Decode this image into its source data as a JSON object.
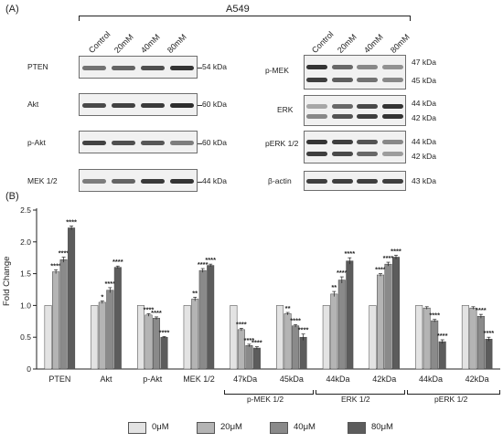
{
  "panel_a": {
    "label": "(A)",
    "cell_line": "A549",
    "columns": [
      "Control",
      "20mM",
      "40mM",
      "80mM"
    ],
    "left_blots": [
      {
        "protein": "PTEN",
        "mw": "54 kDa",
        "intensities": [
          0.55,
          0.62,
          0.72,
          0.85
        ]
      },
      {
        "protein": "Akt",
        "mw": "60 kDa",
        "intensities": [
          0.75,
          0.78,
          0.82,
          0.88
        ]
      },
      {
        "protein": "p-Akt",
        "mw": "60 kDa",
        "intensities": [
          0.78,
          0.72,
          0.68,
          0.5
        ]
      },
      {
        "protein": "MEK 1/2",
        "mw": "44 kDa",
        "intensities": [
          0.5,
          0.62,
          0.82,
          0.85
        ]
      }
    ],
    "right_blots": [
      {
        "protein": "p-MEK",
        "mw_top": "47 kDa",
        "mw_bottom": "45 kDa",
        "intensities_top": [
          0.85,
          0.6,
          0.45,
          0.4
        ],
        "intensities_bottom": [
          0.8,
          0.65,
          0.55,
          0.45
        ]
      },
      {
        "protein": "ERK",
        "mw_top": "44 kDa",
        "mw_bottom": "42 kDa",
        "intensities_top": [
          0.3,
          0.6,
          0.75,
          0.85
        ],
        "intensities_bottom": [
          0.45,
          0.7,
          0.8,
          0.85
        ]
      },
      {
        "protein": "pERK 1/2",
        "mw_top": "44 kDa",
        "mw_bottom": "42 kDa",
        "intensities_top": [
          0.85,
          0.8,
          0.7,
          0.45
        ],
        "intensities_bottom": [
          0.8,
          0.75,
          0.6,
          0.35
        ]
      },
      {
        "protein": "β-actin",
        "mw": "43 kDa",
        "intensities": [
          0.8,
          0.8,
          0.8,
          0.8
        ]
      }
    ]
  },
  "panel_b": {
    "label": "(B)",
    "ylabel": "Fold Change",
    "legend": [
      "0μM",
      "20μM",
      "40μM",
      "80μM"
    ],
    "group_brackets": [
      "p-MEK 1/2",
      "ERK 1/2",
      "pERK 1/2"
    ]
  },
  "chart_data": {
    "type": "bar",
    "ylabel": "Fold Change",
    "ylim": [
      0,
      2.5
    ],
    "yticks": [
      0,
      0.5,
      1.0,
      1.5,
      2.0,
      2.5
    ],
    "categories": [
      "PTEN",
      "Akt",
      "p-Akt",
      "MEK 1/2",
      "47kDa",
      "45kDa",
      "44kDa",
      "42kDa",
      "44kDa",
      "42kDa"
    ],
    "series": [
      {
        "name": "0μM",
        "color": "#e3e3e3",
        "values": [
          1,
          1,
          1,
          1,
          1,
          1,
          1,
          1,
          1,
          1
        ],
        "errors": [
          0,
          0,
          0,
          0,
          0,
          0,
          0,
          0,
          0,
          0
        ],
        "stars": [
          "",
          "",
          "",
          "",
          "",
          "",
          "",
          "",
          "",
          ""
        ]
      },
      {
        "name": "20μM",
        "color": "#b4b4b4",
        "values": [
          1.53,
          1.05,
          0.85,
          1.1,
          0.62,
          0.87,
          1.18,
          1.48,
          0.96,
          0.96
        ],
        "errors": [
          0.03,
          0.02,
          0.02,
          0.03,
          0.02,
          0.02,
          0.04,
          0.02,
          0.02,
          0.02
        ],
        "stars": [
          "****",
          "*",
          "****",
          "**",
          "****",
          "**",
          "**",
          "****",
          "",
          ""
        ]
      },
      {
        "name": "40μM",
        "color": "#8a8a8a",
        "values": [
          1.72,
          1.24,
          0.8,
          1.55,
          0.37,
          0.68,
          1.4,
          1.65,
          0.76,
          0.83
        ],
        "errors": [
          0.04,
          0.04,
          0.02,
          0.03,
          0.02,
          0.02,
          0.05,
          0.03,
          0.02,
          0.03
        ],
        "stars": [
          "****",
          "****",
          "****",
          "****",
          "****",
          "****",
          "****",
          "****",
          "****",
          "****"
        ]
      },
      {
        "name": "80μM",
        "color": "#5c5c5c",
        "values": [
          2.22,
          1.6,
          0.5,
          1.63,
          0.33,
          0.5,
          1.7,
          1.76,
          0.43,
          0.47
        ],
        "errors": [
          0.03,
          0.02,
          0.01,
          0.02,
          0.02,
          0.05,
          0.05,
          0.03,
          0.03,
          0.03
        ],
        "stars": [
          "****",
          "****",
          "****",
          "****",
          "****",
          "****",
          "****",
          "****",
          "****",
          "****"
        ]
      }
    ],
    "grid": false,
    "legend_position": "bottom"
  }
}
